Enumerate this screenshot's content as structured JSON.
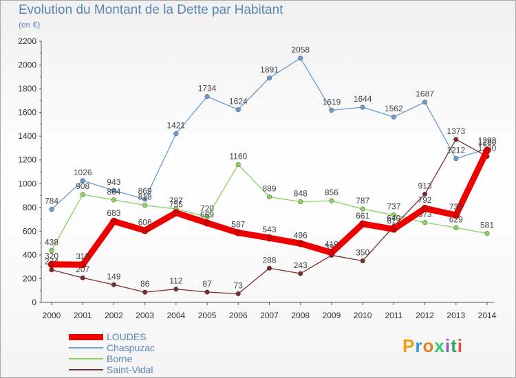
{
  "title": "Evolution du Montant de la Dette par Habitant",
  "subtitle": "(en €)",
  "logo": {
    "letters": [
      "P",
      "r",
      "o",
      "x",
      "i",
      "t",
      "i"
    ],
    "colors": [
      "#f39c12",
      "#3498db",
      "#e67e22",
      "#2ecc71",
      "#9b59b6",
      "#27ae60",
      "#e74c3c"
    ]
  },
  "chart_data": {
    "type": "line",
    "x": [
      2000,
      2001,
      2002,
      2003,
      2004,
      2005,
      2006,
      2007,
      2008,
      2009,
      2010,
      2011,
      2012,
      2013,
      2014
    ],
    "ylim": [
      0,
      2200
    ],
    "yticks": [
      0,
      200,
      400,
      600,
      800,
      1000,
      1200,
      1400,
      1600,
      1800,
      2000,
      2200
    ],
    "grid": false,
    "legend_position": "bottom-left",
    "series": [
      {
        "name": "Chaspuzac",
        "color": "#6a9bd1",
        "values": [
          784,
          1026,
          943,
          869,
          1421,
          1734,
          1624,
          1891,
          2058,
          1619,
          1644,
          1562,
          1687,
          1212,
          1293
        ]
      },
      {
        "name": "Borne",
        "color": "#88d45c",
        "values": [
          438,
          908,
          864,
          818,
          787,
          720,
          1160,
          889,
          848,
          856,
          787,
          737,
          673,
          629,
          581
        ]
      },
      {
        "name": "Saint-Vidal",
        "color": "#7a2a2a",
        "values": [
          274,
          207,
          149,
          86,
          112,
          87,
          73,
          288,
          243,
          397,
          350,
          640,
          913,
          1373,
          1230
        ]
      },
      {
        "name": "LOUDES",
        "color": "#ee0000",
        "values": [
          320,
          318,
          683,
          606,
          755,
          669,
          587,
          543,
          496,
          419,
          661,
          617,
          792,
          735,
          1280
        ]
      }
    ]
  }
}
